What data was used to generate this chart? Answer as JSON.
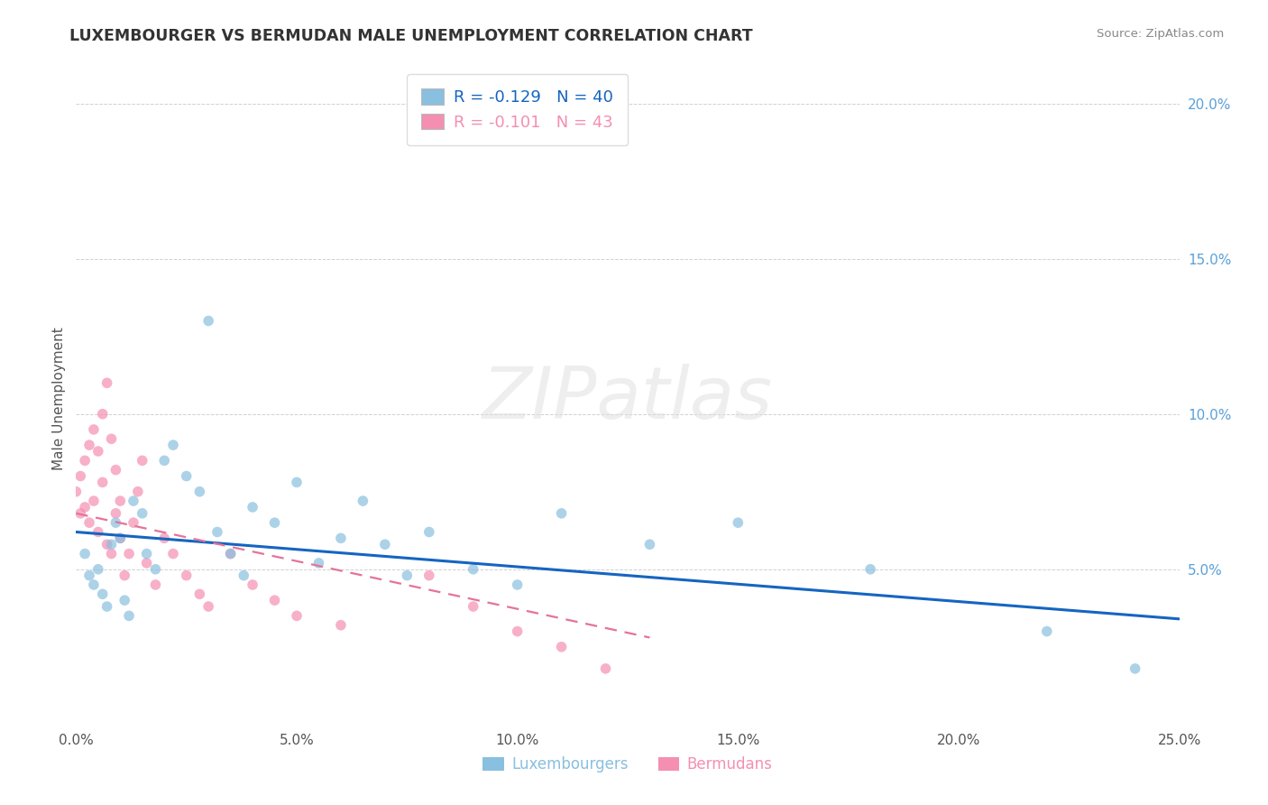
{
  "title": "LUXEMBOURGER VS BERMUDAN MALE UNEMPLOYMENT CORRELATION CHART",
  "source": "Source: ZipAtlas.com",
  "ylabel": "Male Unemployment",
  "watermark": "ZIPatlas",
  "xlim": [
    0.0,
    0.25
  ],
  "ylim": [
    0.0,
    0.21
  ],
  "xticks": [
    0.0,
    0.05,
    0.1,
    0.15,
    0.2,
    0.25
  ],
  "xtick_labels": [
    "0.0%",
    "5.0%",
    "10.0%",
    "15.0%",
    "20.0%",
    "25.0%"
  ],
  "yticks": [
    0.05,
    0.1,
    0.15,
    0.2
  ],
  "ytick_labels": [
    "5.0%",
    "10.0%",
    "15.0%",
    "20.0%"
  ],
  "legend_blue_label": "R = -0.129   N = 40",
  "legend_pink_label": "R = -0.101   N = 43",
  "legend_bottom_blue": "Luxembourgers",
  "legend_bottom_pink": "Bermudans",
  "blue_color": "#89bfdf",
  "pink_color": "#f48fb1",
  "line_blue_color": "#1565c0",
  "line_pink_color": "#e57399",
  "blue_scatter_x": [
    0.002,
    0.003,
    0.004,
    0.005,
    0.006,
    0.007,
    0.008,
    0.009,
    0.01,
    0.011,
    0.012,
    0.013,
    0.015,
    0.016,
    0.018,
    0.02,
    0.022,
    0.025,
    0.028,
    0.03,
    0.032,
    0.035,
    0.038,
    0.04,
    0.045,
    0.05,
    0.055,
    0.06,
    0.065,
    0.07,
    0.075,
    0.08,
    0.09,
    0.1,
    0.11,
    0.13,
    0.15,
    0.18,
    0.22,
    0.24
  ],
  "blue_scatter_y": [
    0.055,
    0.048,
    0.045,
    0.05,
    0.042,
    0.038,
    0.058,
    0.065,
    0.06,
    0.04,
    0.035,
    0.072,
    0.068,
    0.055,
    0.05,
    0.085,
    0.09,
    0.08,
    0.075,
    0.13,
    0.062,
    0.055,
    0.048,
    0.07,
    0.065,
    0.078,
    0.052,
    0.06,
    0.072,
    0.058,
    0.048,
    0.062,
    0.05,
    0.045,
    0.068,
    0.058,
    0.065,
    0.05,
    0.03,
    0.018
  ],
  "pink_scatter_x": [
    0.0,
    0.001,
    0.001,
    0.002,
    0.002,
    0.003,
    0.003,
    0.004,
    0.004,
    0.005,
    0.005,
    0.006,
    0.006,
    0.007,
    0.007,
    0.008,
    0.008,
    0.009,
    0.009,
    0.01,
    0.01,
    0.011,
    0.012,
    0.013,
    0.014,
    0.015,
    0.016,
    0.018,
    0.02,
    0.022,
    0.025,
    0.028,
    0.03,
    0.035,
    0.04,
    0.045,
    0.05,
    0.06,
    0.08,
    0.09,
    0.1,
    0.11,
    0.12
  ],
  "pink_scatter_y": [
    0.075,
    0.08,
    0.068,
    0.085,
    0.07,
    0.09,
    0.065,
    0.095,
    0.072,
    0.088,
    0.062,
    0.1,
    0.078,
    0.11,
    0.058,
    0.092,
    0.055,
    0.068,
    0.082,
    0.072,
    0.06,
    0.048,
    0.055,
    0.065,
    0.075,
    0.085,
    0.052,
    0.045,
    0.06,
    0.055,
    0.048,
    0.042,
    0.038,
    0.055,
    0.045,
    0.04,
    0.035,
    0.032,
    0.048,
    0.038,
    0.03,
    0.025,
    0.018
  ],
  "blue_line_x": [
    0.0,
    0.25
  ],
  "blue_line_y": [
    0.062,
    0.034
  ],
  "pink_line_x": [
    0.0,
    0.13
  ],
  "pink_line_y": [
    0.068,
    0.028
  ]
}
